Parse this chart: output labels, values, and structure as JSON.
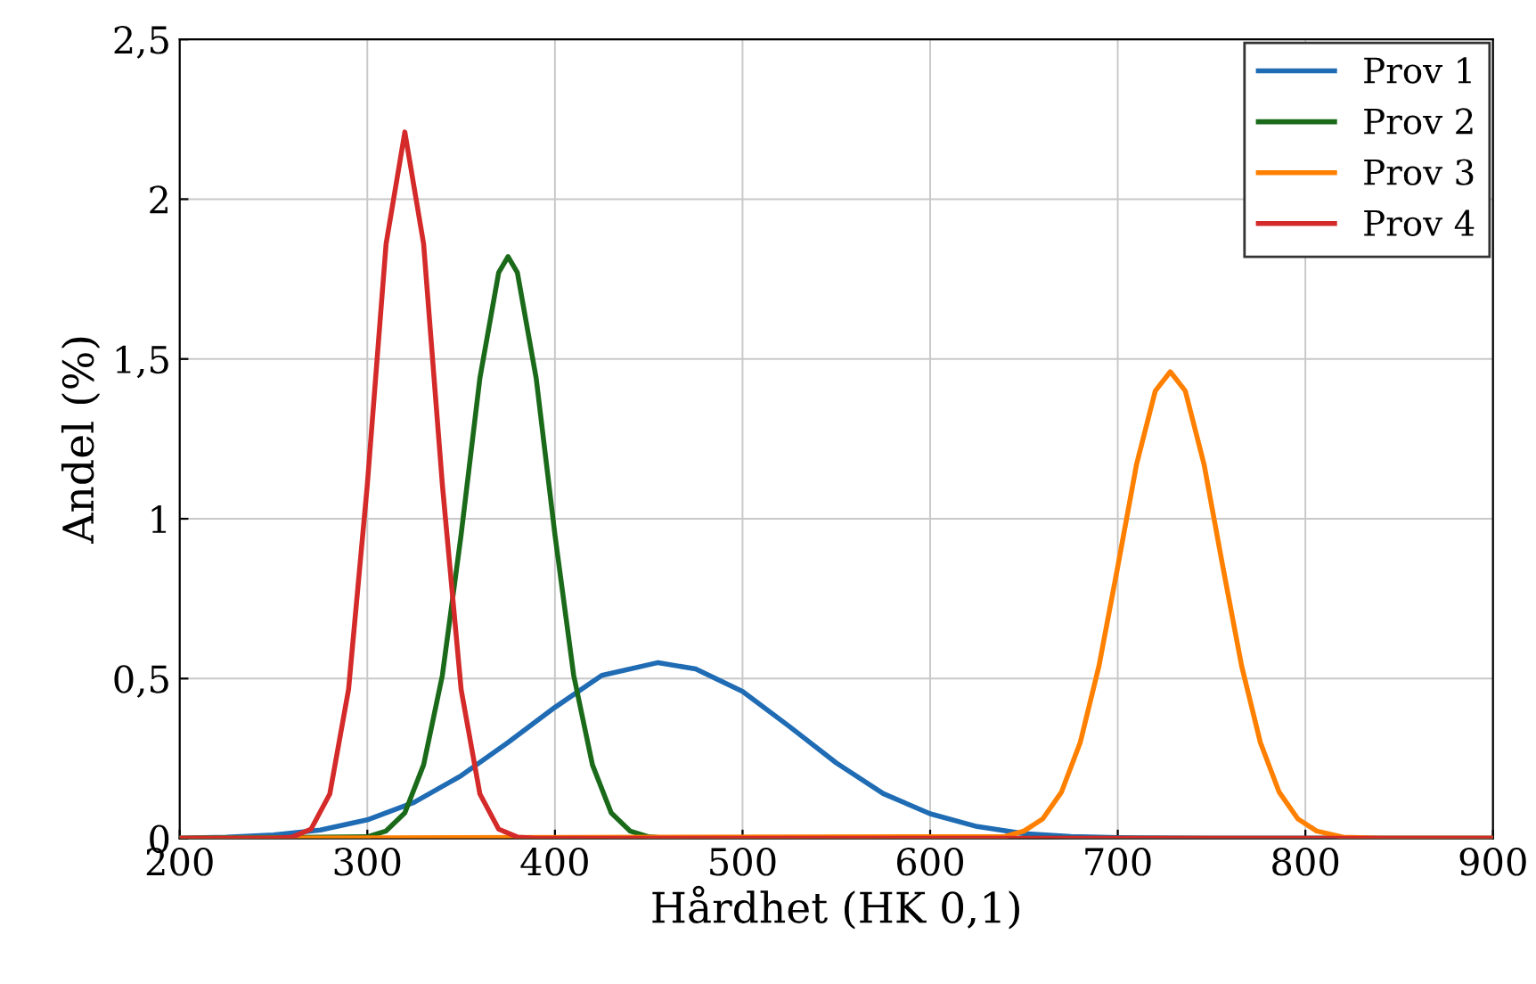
{
  "chart_data": {
    "type": "line",
    "xlabel": "Hårdhet (HK 0,1)",
    "ylabel": "Andel (%)",
    "xlim": [
      200,
      900
    ],
    "xticks": [
      200,
      300,
      400,
      500,
      600,
      700,
      800,
      900
    ],
    "ylim": [
      0,
      2.5
    ],
    "yticks": [
      0,
      {
        "value": 0.5,
        "label": "0,5"
      },
      1,
      {
        "value": 1.5,
        "label": "1,5"
      },
      2,
      {
        "value": 2.5,
        "label": "2,5"
      }
    ],
    "grid": true,
    "legend": "top right",
    "line_style": "solid",
    "marker": "none",
    "series": [
      {
        "name": "Prov 1",
        "color": "#1f6cb4",
        "x": [
          200,
          225,
          250,
          275,
          300,
          325,
          350,
          375,
          400,
          425,
          455,
          475,
          500,
          525,
          550,
          575,
          600,
          625,
          650,
          675,
          700,
          750,
          900
        ],
        "values": [
          0.001,
          0.004,
          0.011,
          0.026,
          0.058,
          0.113,
          0.196,
          0.3,
          0.41,
          0.51,
          0.55,
          0.53,
          0.46,
          0.35,
          0.236,
          0.14,
          0.077,
          0.037,
          0.015,
          0.006,
          0.002,
          0,
          0
        ]
      },
      {
        "name": "Prov 2",
        "color": "#1a6a1a",
        "x": [
          200,
          300,
          310,
          320,
          330,
          340,
          350,
          360,
          370,
          375,
          380,
          390,
          400,
          410,
          420,
          430,
          440,
          450,
          460,
          900
        ],
        "values": [
          0,
          0.005,
          0.023,
          0.08,
          0.23,
          0.51,
          0.95,
          1.44,
          1.77,
          1.82,
          1.77,
          1.44,
          0.95,
          0.51,
          0.23,
          0.08,
          0.023,
          0.005,
          0,
          0
        ]
      },
      {
        "name": "Prov 3",
        "color": "#ff8000",
        "x": [
          200,
          640,
          650,
          660,
          670,
          680,
          690,
          700,
          710,
          720,
          728,
          736,
          746,
          756,
          766,
          776,
          786,
          796,
          806,
          820,
          840,
          900
        ],
        "values": [
          0,
          0.006,
          0.023,
          0.061,
          0.145,
          0.3,
          0.54,
          0.85,
          1.17,
          1.4,
          1.46,
          1.4,
          1.17,
          0.85,
          0.54,
          0.3,
          0.145,
          0.061,
          0.023,
          0.004,
          0,
          0
        ]
      },
      {
        "name": "Prov 4",
        "color": "#d42a2a",
        "x": [
          200,
          250,
          260,
          270,
          280,
          290,
          300,
          310,
          320,
          330,
          340,
          350,
          360,
          370,
          380,
          390,
          900
        ],
        "values": [
          0,
          0,
          0.004,
          0.029,
          0.139,
          0.466,
          1.107,
          1.86,
          2.21,
          1.86,
          1.107,
          0.466,
          0.139,
          0.029,
          0.004,
          0,
          0
        ]
      }
    ]
  }
}
